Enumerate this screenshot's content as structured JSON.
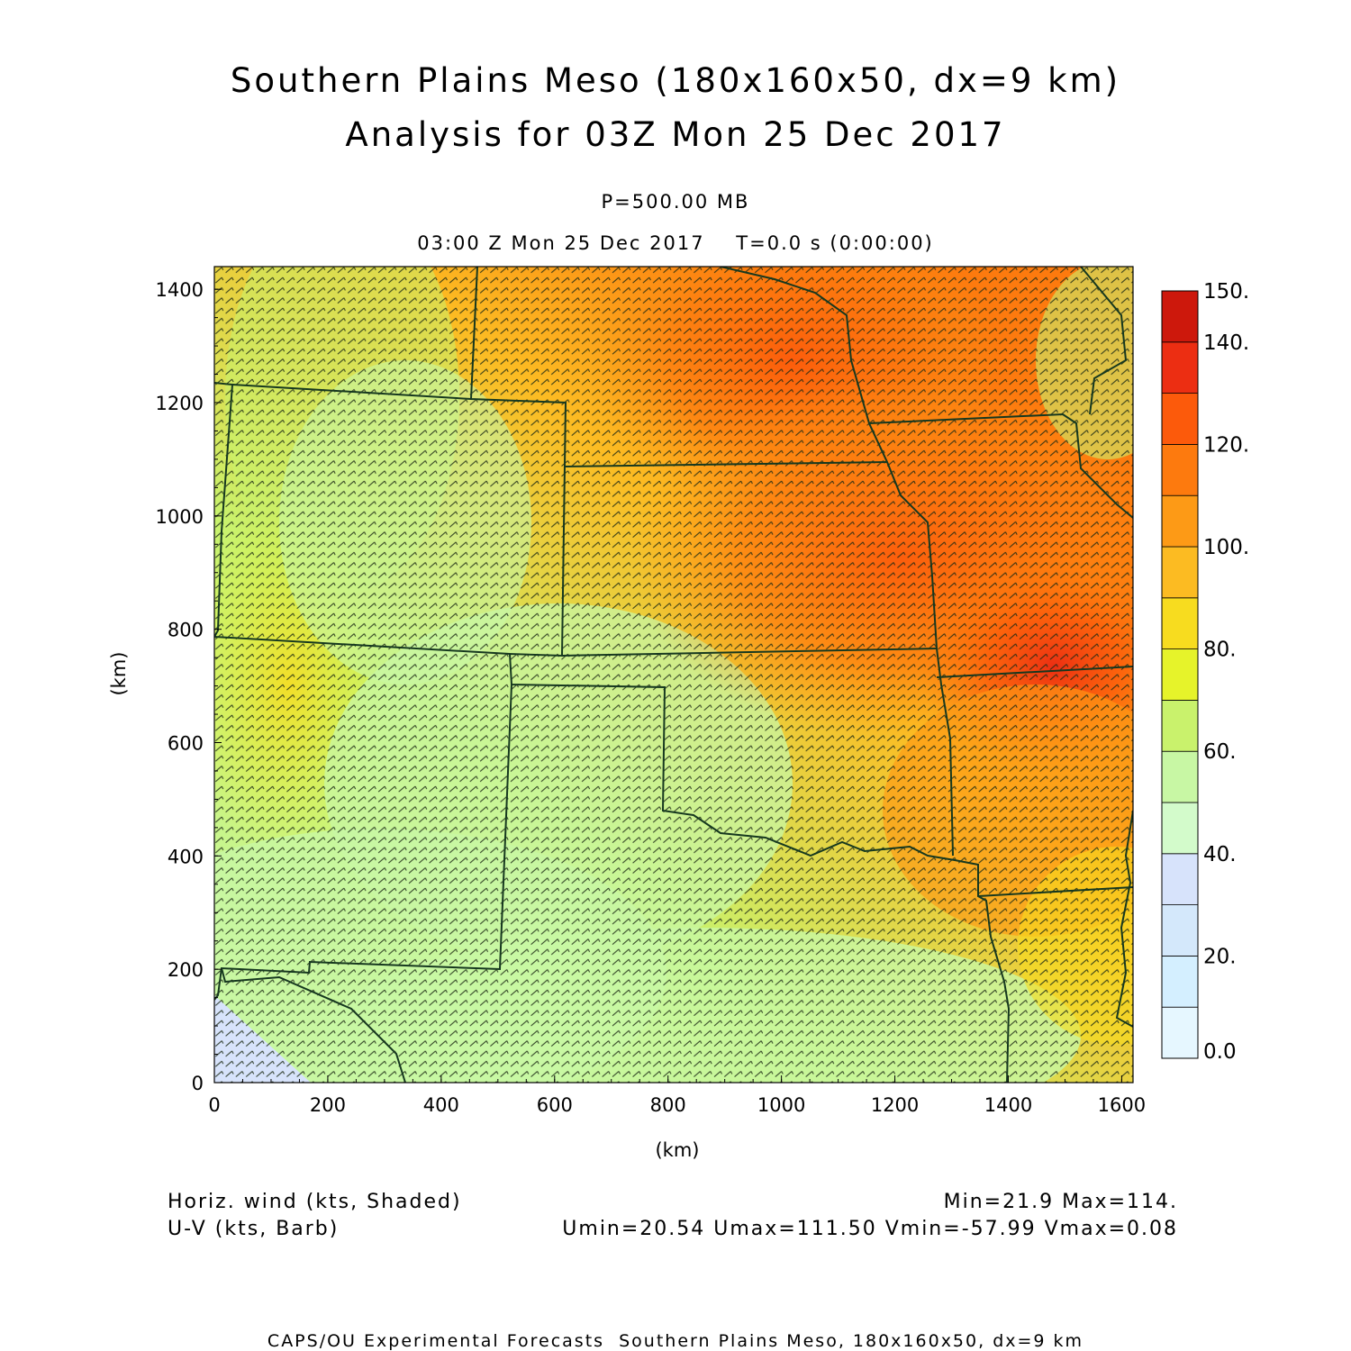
{
  "header": {
    "title_line1": "Southern Plains Meso (180x160x50, dx=9 km)",
    "title_line2": "Analysis for 03Z Mon 25 Dec 2017",
    "level": "P=500.00 MB",
    "time": "03:00 Z Mon 25 Dec 2017    T=0.0 s (0:00:00)"
  },
  "axes": {
    "x_label": "(km)",
    "y_label": "(km)",
    "x_ticks": [
      "0",
      "200",
      "400",
      "600",
      "800",
      "1000",
      "1200",
      "1400",
      "1600"
    ],
    "y_ticks": [
      "0",
      "200",
      "400",
      "600",
      "800",
      "1000",
      "1200",
      "1400"
    ],
    "x_range_km": [
      0,
      1620
    ],
    "y_range_km": [
      0,
      1440
    ]
  },
  "colorbar": {
    "levels": [
      0,
      10,
      20,
      30,
      40,
      50,
      60,
      70,
      80,
      90,
      100,
      110,
      120,
      130,
      140,
      150
    ],
    "colors": [
      "#e6f7ff",
      "#d4efff",
      "#d4e8fb",
      "#d7e3fb",
      "#d3fbcb",
      "#c8f7a4",
      "#c9f26c",
      "#e6f32a",
      "#f7dc1f",
      "#fcbb22",
      "#fd9a16",
      "#fd7a0e",
      "#fc5a0b",
      "#ec2e12",
      "#cd180c",
      "#a60000"
    ],
    "labels": [
      "0.0",
      "20.",
      "40.",
      "60.",
      "80.",
      "100.",
      "120.",
      "140.",
      "150."
    ]
  },
  "footer_info": {
    "field_shaded": "Horiz. wind (kts, Shaded)",
    "field_barb": "U-V (kts, Barb)",
    "minmax": "Min=21.9 Max=114.",
    "uv_stats": "Umin=20.54 Umax=111.50 Vmin=-57.99 Vmax=0.08"
  },
  "footer": "CAPS/OU Experimental Forecasts  Southern Plains Meso, 180x160x50, dx=9 km",
  "map": {
    "field": "horizontal wind speed at 500 mb (kts)",
    "wind_maximum_region": "eastern Kansas / Missouri",
    "wind_minimum_region": "far southwest corner"
  }
}
